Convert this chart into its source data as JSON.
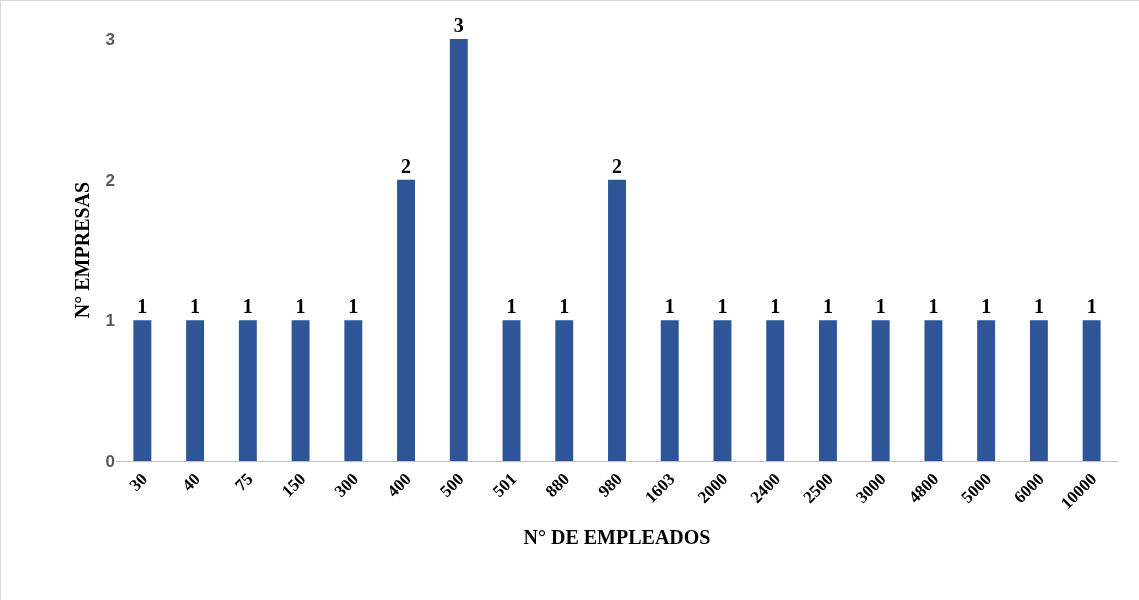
{
  "chart_data": {
    "type": "bar",
    "xlabel": "N° DE EMPLEADOS",
    "ylabel": "N° EMPRESAS",
    "categories": [
      "30",
      "40",
      "75",
      "150",
      "300",
      "400",
      "500",
      "501",
      "880",
      "980",
      "1603",
      "2000",
      "2400",
      "2500",
      "3000",
      "4800",
      "5000",
      "6000",
      "10000"
    ],
    "values": [
      1,
      1,
      1,
      1,
      1,
      2,
      3,
      1,
      1,
      2,
      1,
      1,
      1,
      1,
      1,
      1,
      1,
      1,
      1
    ],
    "color": "#2e5597",
    "ylim": [
      0,
      3
    ],
    "yticks": [
      0,
      1,
      2,
      3
    ],
    "grid": false,
    "data_labels": true
  }
}
